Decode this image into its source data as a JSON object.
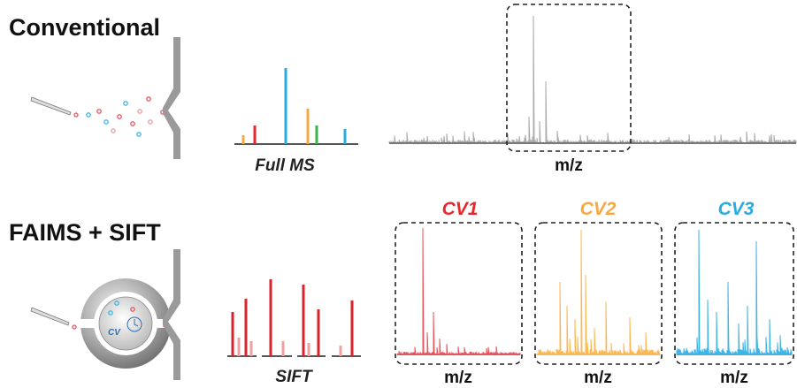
{
  "rows": [
    {
      "label": "Conventional",
      "spectrum_label": "Full MS",
      "axis_label": "m/z"
    },
    {
      "label": "FAIMS + SIFT",
      "device_label": "CV",
      "spectrum_label": "SIFT",
      "panels": [
        {
          "title": "CV1",
          "axis_label": "m/z"
        },
        {
          "title": "CV2",
          "axis_label": "m/z"
        },
        {
          "title": "CV3",
          "axis_label": "m/z"
        }
      ]
    }
  ]
}
